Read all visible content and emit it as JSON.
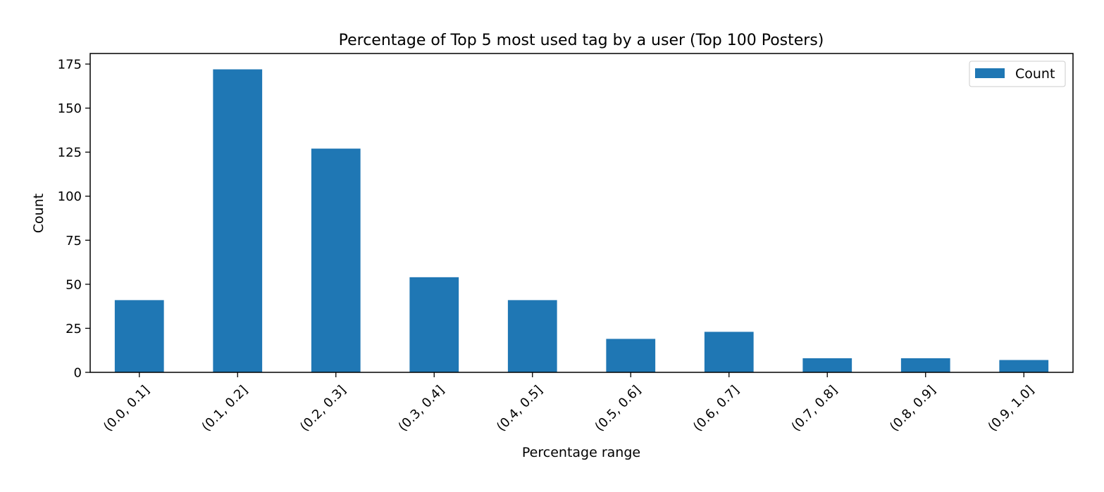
{
  "chart_data": {
    "type": "bar",
    "title": "Percentage of Top 5 most used tag by a user (Top 100 Posters)",
    "xlabel": "Percentage range",
    "ylabel": "Count",
    "categories": [
      "(0.0, 0.1]",
      "(0.1, 0.2]",
      "(0.2, 0.3]",
      "(0.3, 0.4]",
      "(0.4, 0.5]",
      "(0.5, 0.6]",
      "(0.6, 0.7]",
      "(0.7, 0.8]",
      "(0.8, 0.9]",
      "(0.9, 1.0]"
    ],
    "series": [
      {
        "name": "Count",
        "color": "#1f77b4",
        "values": [
          41,
          172,
          127,
          54,
          41,
          19,
          23,
          8,
          8,
          7
        ]
      }
    ],
    "ylim": [
      0,
      181
    ],
    "yticks": [
      0,
      25,
      50,
      75,
      100,
      125,
      150,
      175
    ],
    "grid": false,
    "legend": "top-right"
  }
}
